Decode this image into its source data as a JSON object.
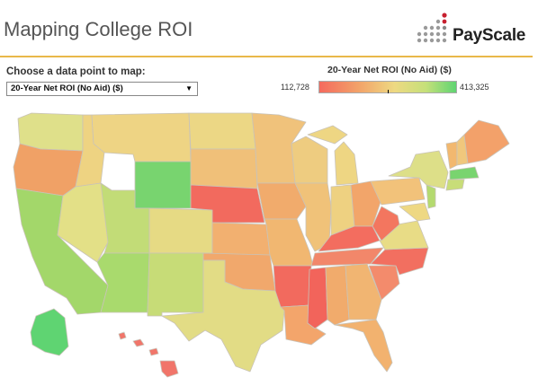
{
  "header": {
    "title": "Mapping College ROI",
    "logo_text": "PayScale"
  },
  "controls": {
    "chooser_label": "Choose a data point to map:",
    "selected_option": "20-Year Net ROI (No Aid) ($)"
  },
  "legend": {
    "title": "20-Year Net ROI (No Aid) ($)",
    "min_label": "112,728",
    "max_label": "413,325"
  },
  "colors": {
    "accent_rule": "#e9b84a",
    "scale_low": "#f46a5e",
    "scale_mid": "#eed982",
    "scale_high": "#5fd472"
  },
  "icons": [
    "payscale-logo-icon",
    "dropdown-arrow-icon"
  ]
}
